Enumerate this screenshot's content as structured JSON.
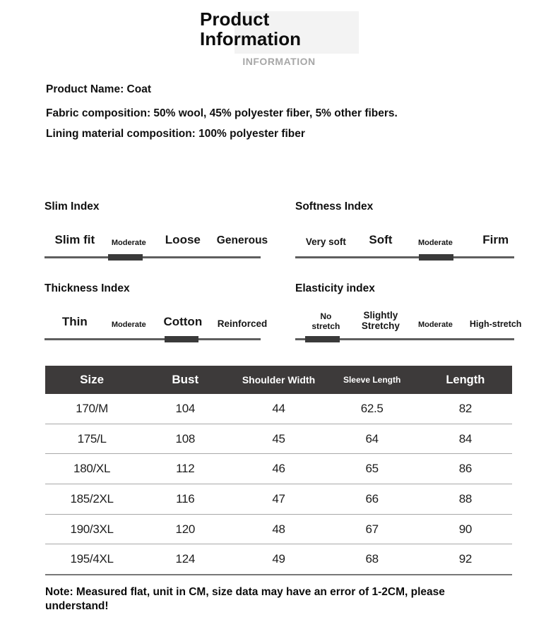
{
  "header": {
    "title": "Product Information",
    "subtitle": "INFORMATION"
  },
  "product": {
    "name": "Product Name: Coat",
    "fabric": "Fabric composition: 50% wool, 45% polyester fiber, 5% other fibers.",
    "lining": "Lining material composition: 100% polyester fiber"
  },
  "indexes": [
    {
      "title": "Slim Index",
      "options": [
        "Slim fit",
        "Moderate",
        "Loose",
        "Generous"
      ],
      "selected": "Moderate"
    },
    {
      "title": "Softness Index",
      "options": [
        "Very soft",
        "Soft",
        "Moderate",
        "Firm"
      ],
      "selected": "Moderate"
    },
    {
      "title": "Thickness Index",
      "options": [
        "Thin",
        "Moderate",
        "Cotton",
        "Reinforced"
      ],
      "selected": "Cotton"
    },
    {
      "title": "Elasticity index",
      "options": [
        "No stretch",
        "Slightly Stretchy",
        "Moderate",
        "High-stretch"
      ],
      "selected": "No stretch"
    }
  ],
  "size_table": {
    "columns": [
      "Size",
      "Bust",
      "Shoulder Width",
      "Sleeve Length",
      "Length"
    ],
    "rows": [
      [
        "170/M",
        "104",
        "44",
        "62.5",
        "82"
      ],
      [
        "175/L",
        "108",
        "45",
        "64",
        "84"
      ],
      [
        "180/XL",
        "112",
        "46",
        "65",
        "86"
      ],
      [
        "185/2XL",
        "116",
        "47",
        "66",
        "88"
      ],
      [
        "190/3XL",
        "120",
        "48",
        "67",
        "90"
      ],
      [
        "195/4XL",
        "124",
        "49",
        "68",
        "92"
      ]
    ]
  },
  "note": "Note: Measured flat, unit in CM, size data may have an error of 1-2CM, please understand!",
  "colors": {
    "table_header_bg": "#3d3a3a",
    "indicator": "#3a3a3a",
    "track_line": "#5e5e5e",
    "subtitle_gray": "#a7a7a7"
  }
}
